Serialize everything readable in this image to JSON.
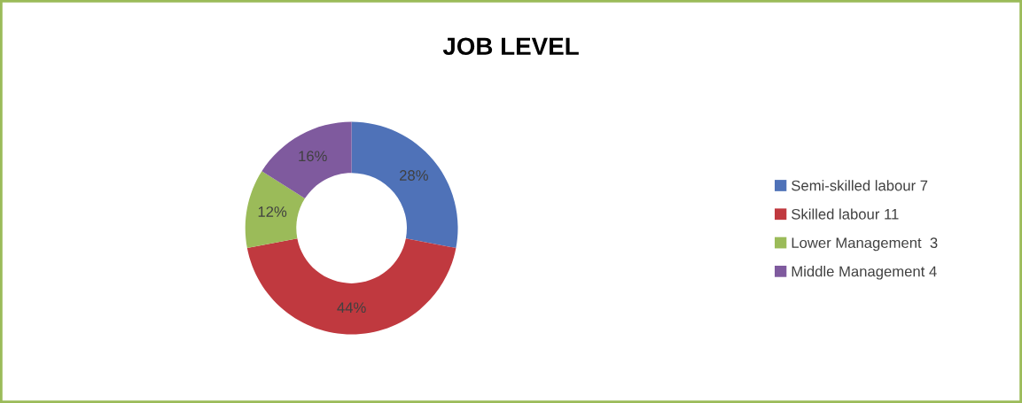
{
  "chart_data": {
    "type": "donut",
    "title": "JOB LEVEL",
    "categories": [
      "Semi-skilled labour 7",
      "Skilled labour 11",
      "Lower Management  3",
      "Middle Management 4"
    ],
    "values": [
      28,
      44,
      12,
      16
    ],
    "colors": [
      "#4f72b8",
      "#c0393f",
      "#9bbb59",
      "#7f5a9e"
    ],
    "value_labels": [
      "28%",
      "44%",
      "12%",
      "16%"
    ],
    "legend": "right"
  }
}
